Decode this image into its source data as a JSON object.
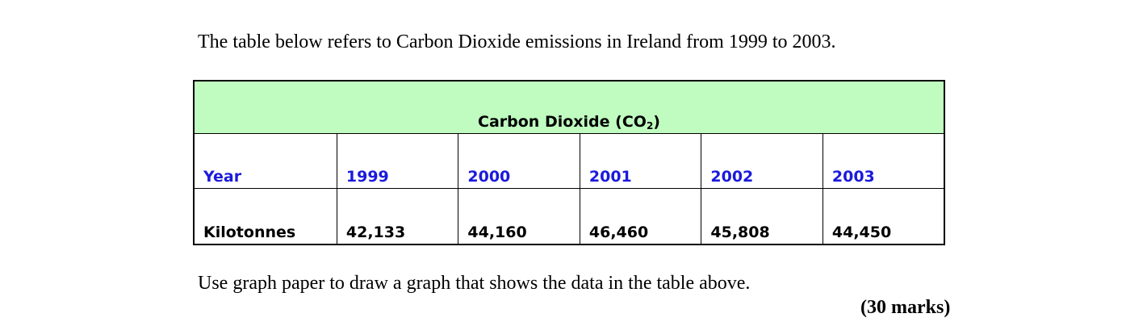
{
  "intro": "The table below refers to Carbon Dioxide emissions in Ireland from 1999 to 2003.",
  "table": {
    "header_main": "Carbon Dioxide (CO",
    "header_sub": "2",
    "header_close": ")",
    "row_year_label": "Year",
    "years": [
      "1999",
      "2000",
      "2001",
      "2002",
      "2003"
    ],
    "row_value_label": "Kilotonnes",
    "values": [
      "42,133",
      "44,160",
      "46,460",
      "45,808",
      "44,450"
    ],
    "colors": {
      "header_bg": "#c0fcc0",
      "year_text": "#1a1adc"
    }
  },
  "instruction": "Use graph paper to draw a graph that shows the data in the table above.",
  "marks": "(30 marks)"
}
